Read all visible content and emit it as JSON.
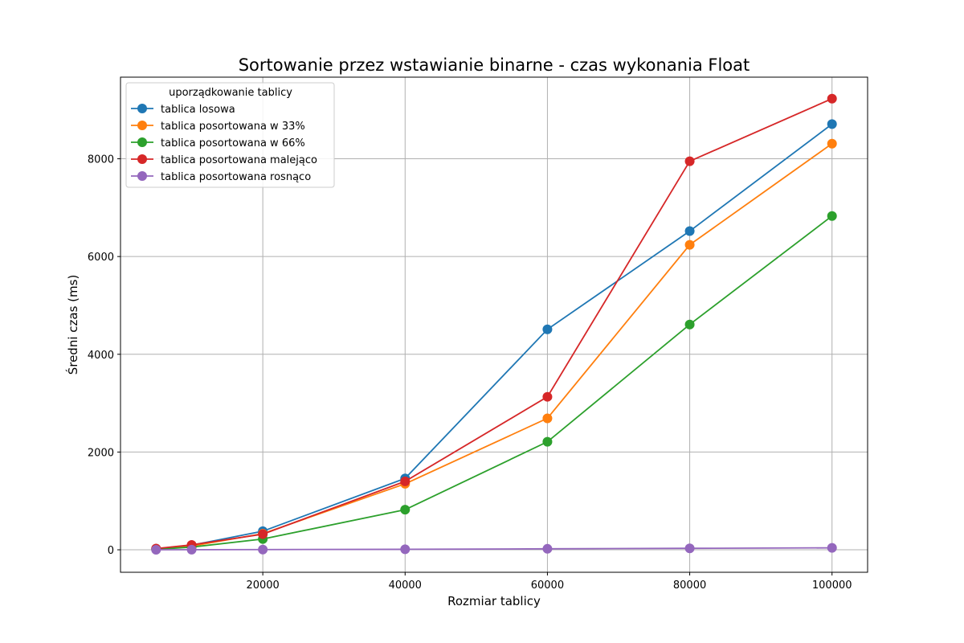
{
  "chart_data": {
    "type": "line",
    "title": "Sortowanie przez wstawianie binarne - czas wykonania Float",
    "xlabel": "Rozmiar tablicy",
    "ylabel": "Średni czas (ms)",
    "x": [
      5000,
      10000,
      20000,
      40000,
      60000,
      80000,
      100000
    ],
    "xlim": [
      0,
      105000
    ],
    "ylim": [
      -460,
      9670
    ],
    "xticks": [
      20000,
      40000,
      60000,
      80000,
      100000
    ],
    "yticks": [
      0,
      2000,
      4000,
      6000,
      8000
    ],
    "grid": true,
    "legend": {
      "title": "uporządkowanie tablicy",
      "placement": "top-left"
    },
    "series": [
      {
        "name": "tablica losowa",
        "color": "#1f77b4",
        "values": [
          20,
          95,
          380,
          1460,
          4510,
          6520,
          8710
        ]
      },
      {
        "name": "tablica posortowana w 33%",
        "color": "#ff7f0e",
        "values": [
          15,
          75,
          330,
          1350,
          2690,
          6240,
          8310
        ]
      },
      {
        "name": "tablica posortowana w 66%",
        "color": "#2ca02c",
        "values": [
          10,
          55,
          220,
          820,
          2210,
          4610,
          6830
        ]
      },
      {
        "name": "tablica posortowana malejąco",
        "color": "#d62728",
        "values": [
          25,
          100,
          320,
          1400,
          3130,
          7950,
          9230
        ]
      },
      {
        "name": "tablica posortowana rosnąco",
        "color": "#9467bd",
        "values": [
          1,
          2,
          5,
          10,
          20,
          30,
          40
        ]
      }
    ]
  }
}
